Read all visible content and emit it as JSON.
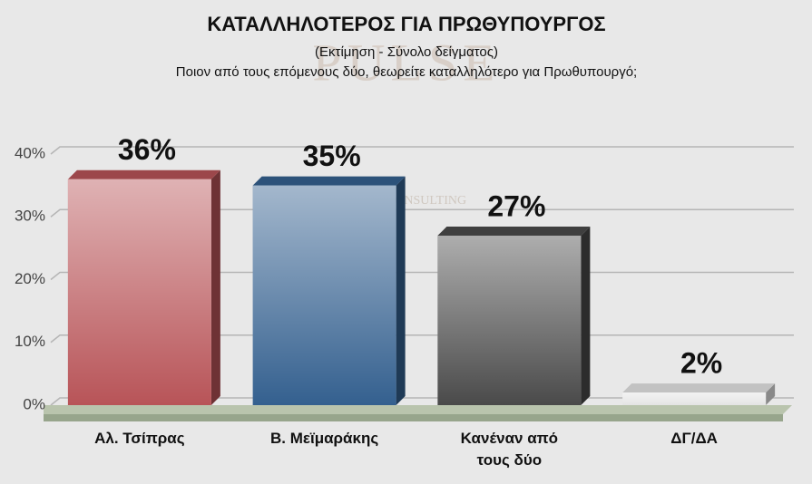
{
  "chart_data": {
    "type": "bar",
    "title": "ΚΑΤΑΛΛΗΛΟΤΕΡΟΣ ΓΙΑ ΠΡΩΘΥΠΟΥΡΓΟΣ",
    "subtitle": "(Εκτίμηση - Σύνολο δείγματος)",
    "question": "Ποιον από τους επόμενους δύο, θεωρείτε καταλληλότερο για Πρωθυπουργό;",
    "watermark": "PULSE",
    "watermark_sub": "CONSULTING",
    "categories": [
      "Αλ. Τσίπρας",
      "Β. Μεϊμαράκης",
      "Κανέναν από τους δύο",
      "ΔΓ/ΔΑ"
    ],
    "values": [
      36,
      35,
      27,
      2
    ],
    "value_labels": [
      "36%",
      "35%",
      "27%",
      "2%"
    ],
    "colors": [
      "#b85458",
      "#34608f",
      "#4a4a4a",
      "#e4e4e4"
    ],
    "ylim": [
      0,
      40
    ],
    "yticks": [
      {
        "value": 0,
        "label": "0%"
      },
      {
        "value": 10,
        "label": "10%"
      },
      {
        "value": 20,
        "label": "20%"
      },
      {
        "value": 30,
        "label": "30%"
      },
      {
        "value": 40,
        "label": "40%"
      }
    ],
    "grid": true
  }
}
